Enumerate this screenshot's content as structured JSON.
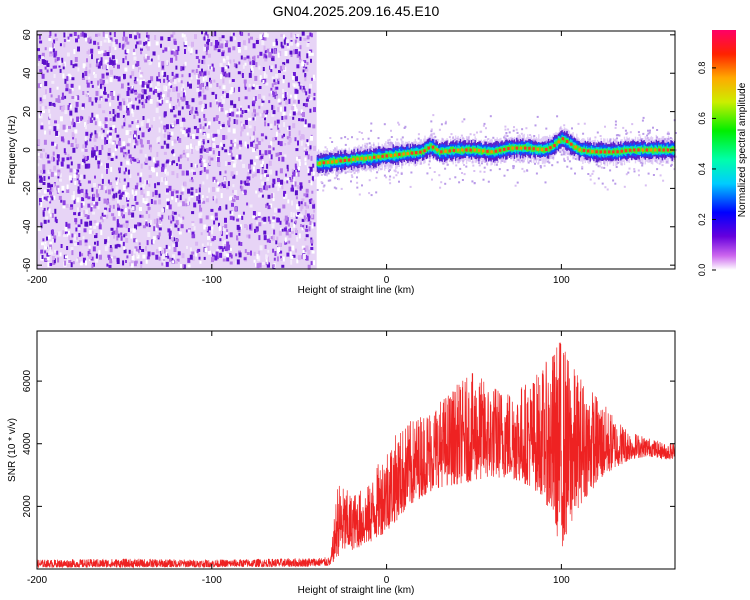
{
  "title": "GN04.2025.209.16.45.E10",
  "chart_data": [
    {
      "type": "heatmap",
      "xlabel": "Height of straight line (km)",
      "ylabel": "Frequency (Hz)",
      "xlim": [
        -200,
        165
      ],
      "ylim": [
        -62,
        62
      ],
      "x_ticks": [
        -200,
        -100,
        0,
        100
      ],
      "y_ticks": [
        -60,
        -40,
        -20,
        0,
        20,
        40,
        60
      ],
      "noise_region_x": [
        -200,
        -40
      ],
      "signal_track": {
        "x": [
          -40,
          -30,
          -20,
          -10,
          0,
          10,
          20,
          25,
          30,
          40,
          50,
          60,
          70,
          80,
          90,
          95,
          100,
          105,
          110,
          120,
          130,
          140,
          150,
          160,
          165
        ],
        "y": [
          -7,
          -6,
          -5,
          -4,
          -3,
          -2,
          -1,
          2,
          -1,
          0,
          0,
          -1,
          1,
          1,
          0,
          2,
          6,
          3,
          0,
          -1,
          -1,
          0,
          0,
          0,
          0
        ]
      },
      "colorbar": {
        "label": "Normalized spectral amplitude",
        "ticks": [
          0.0,
          0.2,
          0.4,
          0.6,
          0.8
        ],
        "tick_labels": [
          "0.0",
          "0.2",
          "0.4",
          "0.6",
          "0.8"
        ],
        "range": [
          0,
          0.95
        ]
      }
    },
    {
      "type": "line",
      "xlabel": "Height of straight line (km)",
      "ylabel": "SNR (10 * v/v)",
      "xlim": [
        -200,
        165
      ],
      "ylim": [
        0,
        7600
      ],
      "x_ticks": [
        -200,
        -100,
        0,
        100
      ],
      "y_ticks": [
        2000,
        4000,
        6000
      ],
      "color": "#ee2222",
      "envelope": {
        "x": [
          -200,
          -150,
          -100,
          -50,
          -32,
          -28,
          -20,
          -10,
          0,
          10,
          20,
          30,
          40,
          50,
          60,
          70,
          80,
          90,
          95,
          100,
          105,
          110,
          120,
          130,
          140,
          150,
          160,
          165
        ],
        "low": [
          50,
          50,
          60,
          70,
          100,
          400,
          600,
          800,
          1200,
          1800,
          2300,
          2600,
          2700,
          2800,
          2900,
          2900,
          2700,
          2300,
          1500,
          600,
          1300,
          2000,
          2700,
          3200,
          3500,
          3600,
          3500,
          3500
        ],
        "high": [
          300,
          330,
          300,
          350,
          380,
          2800,
          2400,
          2700,
          4000,
          4600,
          5000,
          5400,
          5900,
          6300,
          5900,
          5800,
          6000,
          6500,
          7000,
          7600,
          6600,
          6300,
          5600,
          4900,
          4400,
          4200,
          4000,
          4100
        ]
      }
    }
  ]
}
